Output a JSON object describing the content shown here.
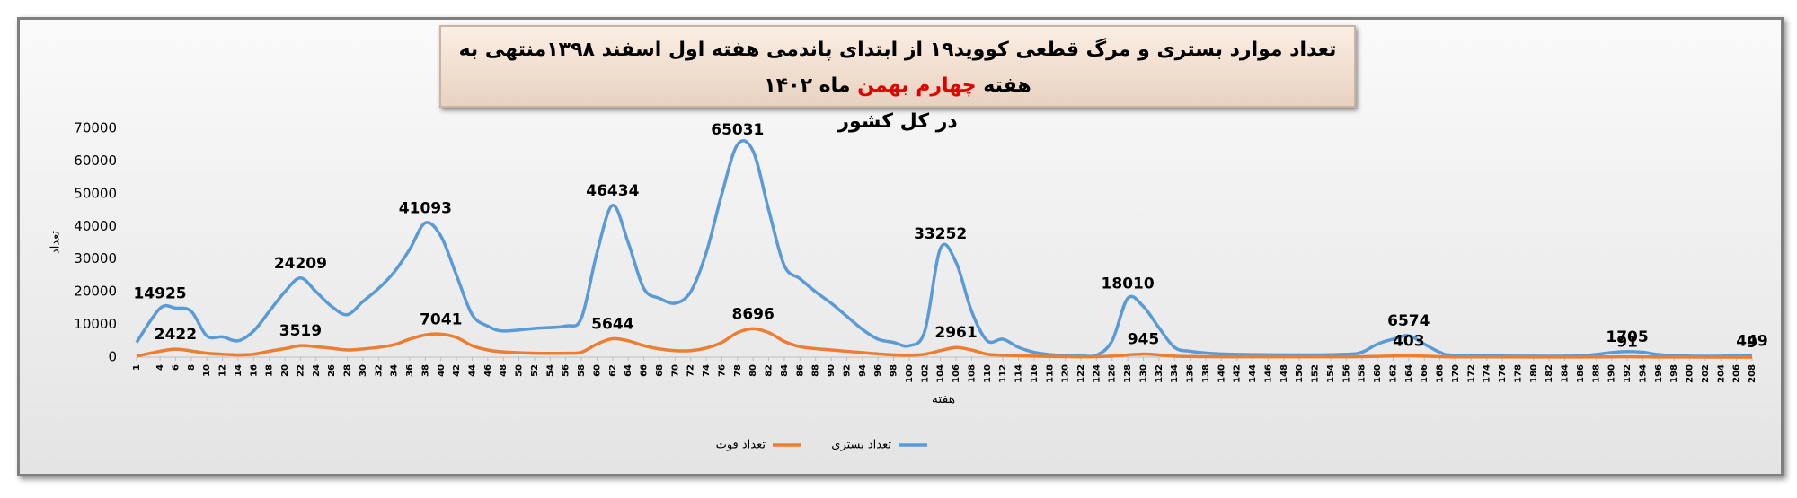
{
  "chart_data": {
    "type": "line",
    "title": "تعداد موارد بستری و مرگ قطعی کووید۱۹ از ابتدای پاندمی هفته اول اسفند ۱۳۹۸منتهی به هفته",
    "title_highlight": "چهارم بهمن",
    "title_end": "ماه ۱۴۰۲",
    "title_line2": "در کل کشور",
    "xlabel": "هفته",
    "ylabel": "تعداد",
    "x": [
      1,
      4,
      6,
      8,
      10,
      12,
      14,
      16,
      18,
      20,
      22,
      24,
      26,
      28,
      30,
      32,
      34,
      36,
      38,
      40,
      42,
      44,
      46,
      48,
      52,
      56,
      58,
      60,
      62,
      64,
      66,
      68,
      70,
      72,
      74,
      76,
      78,
      80,
      82,
      84,
      86,
      88,
      90,
      92,
      94,
      96,
      98,
      100,
      102,
      104,
      106,
      108,
      110,
      112,
      114,
      116,
      118,
      120,
      122,
      124,
      126,
      128,
      130,
      132,
      134,
      136,
      140,
      150,
      156,
      158,
      160,
      162,
      164,
      166,
      168,
      170,
      180,
      186,
      190,
      192,
      194,
      196,
      200,
      204,
      208
    ],
    "series": [
      {
        "name": "تعداد بستری",
        "color": "#5b9bd5",
        "values": [
          4500,
          14925,
          15000,
          14000,
          6500,
          6200,
          5000,
          8000,
          14000,
          20000,
          24209,
          20000,
          15500,
          13000,
          17000,
          21000,
          26000,
          33000,
          41093,
          37000,
          25000,
          13000,
          9500,
          8000,
          8800,
          9500,
          12000,
          32000,
          46434,
          35000,
          21000,
          18000,
          16500,
          20000,
          32000,
          50000,
          65031,
          63000,
          45000,
          28000,
          24000,
          20000,
          16500,
          12500,
          8500,
          5500,
          4500,
          3500,
          8000,
          33252,
          29000,
          14000,
          5000,
          5500,
          3000,
          1500,
          800,
          500,
          400,
          600,
          5000,
          18010,
          15500,
          9000,
          3000,
          1800,
          1000,
          700,
          900,
          1500,
          4000,
          5500,
          6574,
          4000,
          1500,
          600,
          300,
          400,
          1400,
          1705,
          1500,
          800,
          300,
          300,
          449
        ],
        "value_labels": [
          null,
          "14925",
          null,
          null,
          null,
          null,
          null,
          null,
          null,
          null,
          "24209",
          null,
          null,
          null,
          null,
          null,
          null,
          null,
          "41093",
          null,
          null,
          null,
          null,
          null,
          null,
          null,
          null,
          null,
          "46434",
          null,
          null,
          null,
          null,
          null,
          null,
          null,
          "65031",
          null,
          null,
          null,
          null,
          null,
          null,
          null,
          null,
          null,
          null,
          null,
          null,
          "33252",
          null,
          null,
          null,
          null,
          null,
          null,
          null,
          null,
          null,
          null,
          null,
          "18010",
          null,
          null,
          null,
          null,
          null,
          null,
          null,
          null,
          null,
          null,
          "6574",
          null,
          null,
          null,
          null,
          null,
          null,
          "1705",
          null,
          null,
          null,
          null,
          "449"
        ]
      },
      {
        "name": "تعداد فوت",
        "color": "#ed7d31",
        "values": [
          300,
          1800,
          2422,
          1900,
          1200,
          900,
          700,
          900,
          1800,
          2600,
          3519,
          3200,
          2700,
          2200,
          2500,
          3000,
          3800,
          5500,
          6800,
          7041,
          6000,
          3500,
          2200,
          1600,
          1200,
          1200,
          1500,
          4000,
          5644,
          5000,
          3500,
          2500,
          2000,
          2000,
          2800,
          4500,
          7500,
          8696,
          7500,
          4800,
          3200,
          2600,
          2200,
          1800,
          1400,
          1000,
          700,
          600,
          900,
          2000,
          2961,
          2200,
          900,
          600,
          400,
          300,
          200,
          150,
          100,
          150,
          300,
          700,
          945,
          700,
          300,
          200,
          120,
          100,
          100,
          150,
          250,
          350,
          403,
          300,
          150,
          80,
          40,
          40,
          70,
          91,
          80,
          50,
          20,
          10,
          9
        ],
        "value_labels": [
          null,
          null,
          "2422",
          null,
          null,
          null,
          null,
          null,
          null,
          null,
          "3519",
          null,
          null,
          null,
          null,
          null,
          null,
          null,
          null,
          "7041",
          null,
          null,
          null,
          null,
          null,
          null,
          null,
          null,
          "5644",
          null,
          null,
          null,
          null,
          null,
          null,
          null,
          null,
          "8696",
          null,
          null,
          null,
          null,
          null,
          null,
          null,
          null,
          null,
          null,
          null,
          null,
          "2961",
          null,
          null,
          null,
          null,
          null,
          null,
          null,
          null,
          null,
          null,
          null,
          "945",
          null,
          null,
          null,
          null,
          null,
          null,
          null,
          null,
          null,
          "403",
          null,
          null,
          null,
          null,
          null,
          null,
          "91",
          null,
          null,
          null,
          null,
          "9"
        ]
      }
    ],
    "xlim": [
      1,
      208
    ],
    "xticks": [
      1,
      4,
      6,
      8,
      10,
      12,
      14,
      16,
      18,
      20,
      22,
      24,
      26,
      28,
      30,
      32,
      34,
      36,
      38,
      40,
      42,
      44,
      46,
      48,
      50,
      52,
      54,
      56,
      58,
      60,
      62,
      64,
      66,
      68,
      70,
      72,
      74,
      76,
      78,
      80,
      82,
      84,
      86,
      88,
      90,
      92,
      94,
      96,
      98,
      100,
      102,
      104,
      106,
      108,
      110,
      112,
      114,
      116,
      118,
      120,
      122,
      124,
      126,
      128,
      130,
      132,
      134,
      136,
      138,
      140,
      142,
      144,
      146,
      148,
      150,
      152,
      154,
      156,
      158,
      160,
      162,
      164,
      166,
      168,
      170,
      172,
      174,
      176,
      178,
      180,
      182,
      184,
      186,
      188,
      190,
      192,
      194,
      196,
      198,
      200,
      202,
      204,
      206,
      208
    ],
    "ylim": [
      0,
      70000
    ],
    "yticks": [
      0,
      10000,
      20000,
      30000,
      40000,
      50000,
      60000,
      70000
    ],
    "grid": false
  }
}
